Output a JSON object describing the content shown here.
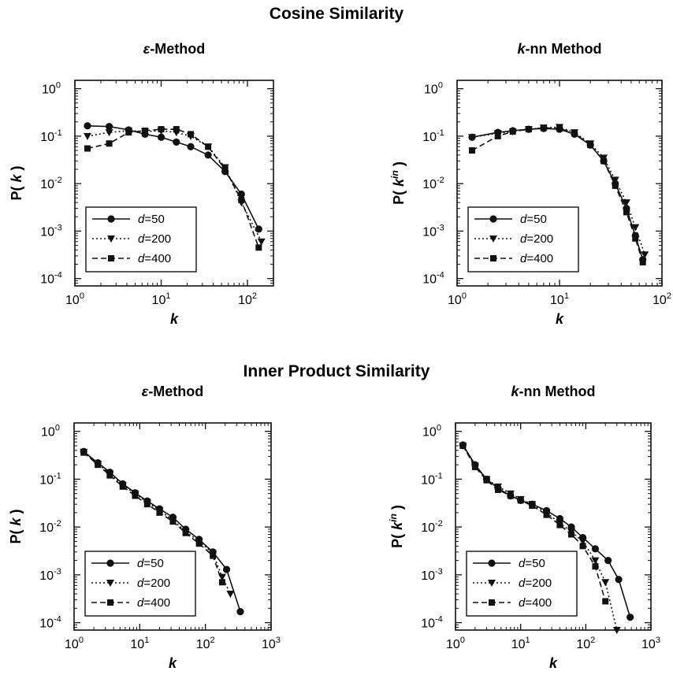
{
  "section_titles": [
    "Cosine Similarity",
    "Inner Product Similarity"
  ],
  "colors": {
    "ink": "#111111"
  },
  "chart_data": [
    {
      "type": "line",
      "section": "Cosine Similarity",
      "title_prefix": "ε",
      "title_suffix": "-Method",
      "xlabel": "k",
      "ylabel_prefix": "P( ",
      "ylabel_var": "k",
      "ylabel_sup": "",
      "ylabel_suffix": " )",
      "xscale": "log",
      "yscale": "log",
      "xlim": [
        1,
        200
      ],
      "ylim": [
        7e-05,
        1.5
      ],
      "xticks": [
        {
          "b": "10",
          "e": "0",
          "v": 1
        },
        {
          "b": "10",
          "e": "1",
          "v": 10
        },
        {
          "b": "10",
          "e": "2",
          "v": 100
        }
      ],
      "yticks": [
        {
          "b": "10",
          "e": "0",
          "v": 1
        },
        {
          "b": "10",
          "e": "-1",
          "v": 0.1
        },
        {
          "b": "10",
          "e": "-2",
          "v": 0.01
        },
        {
          "b": "10",
          "e": "-3",
          "v": 0.001
        },
        {
          "b": "10",
          "e": "-4",
          "v": 0.0001
        }
      ],
      "legend_position": "bottom-left",
      "series": [
        {
          "name_var": "d",
          "name_rest": "=50",
          "marker": "circle",
          "dash": "solid",
          "x": [
            1.4,
            2.5,
            4.2,
            6.5,
            10,
            15,
            22,
            35,
            55,
            85,
            135
          ],
          "y": [
            0.165,
            0.16,
            0.135,
            0.11,
            0.095,
            0.075,
            0.06,
            0.04,
            0.018,
            0.006,
            0.0011
          ]
        },
        {
          "name_var": "d",
          "name_rest": "=200",
          "marker": "triangle",
          "dash": "dotted",
          "x": [
            1.4,
            2.5,
            4.2,
            6.5,
            10,
            15,
            22,
            35,
            55,
            85,
            145
          ],
          "y": [
            0.1,
            0.12,
            0.13,
            0.125,
            0.13,
            0.12,
            0.1,
            0.06,
            0.022,
            0.004,
            0.0006
          ]
        },
        {
          "name_var": "d",
          "name_rest": "=400",
          "marker": "square",
          "dash": "dashed",
          "x": [
            1.4,
            2.5,
            4.2,
            6.5,
            10,
            15,
            22,
            35,
            55,
            85,
            135
          ],
          "y": [
            0.055,
            0.07,
            0.12,
            0.13,
            0.14,
            0.14,
            0.11,
            0.06,
            0.02,
            0.0045,
            0.00045
          ]
        }
      ]
    },
    {
      "type": "line",
      "section": "Cosine Similarity",
      "title_prefix": "k",
      "title_suffix": "-nn Method",
      "xlabel": "k",
      "ylabel_prefix": "P( ",
      "ylabel_var": "k",
      "ylabel_sup": "in",
      "ylabel_suffix": " )",
      "xscale": "log",
      "yscale": "log",
      "xlim": [
        1,
        100
      ],
      "ylim": [
        7e-05,
        1.5
      ],
      "xticks": [
        {
          "b": "10",
          "e": "0",
          "v": 1
        },
        {
          "b": "10",
          "e": "1",
          "v": 10
        },
        {
          "b": "10",
          "e": "2",
          "v": 100
        }
      ],
      "yticks": [
        {
          "b": "10",
          "e": "0",
          "v": 1
        },
        {
          "b": "10",
          "e": "-1",
          "v": 0.1
        },
        {
          "b": "10",
          "e": "-2",
          "v": 0.01
        },
        {
          "b": "10",
          "e": "-3",
          "v": 0.001
        },
        {
          "b": "10",
          "e": "-4",
          "v": 0.0001
        }
      ],
      "legend_position": "bottom-left",
      "series": [
        {
          "name_var": "d",
          "name_rest": "=50",
          "marker": "circle",
          "dash": "solid",
          "x": [
            1.4,
            2.5,
            3.5,
            5,
            7,
            10,
            14,
            20,
            27,
            35,
            45,
            55,
            65
          ],
          "y": [
            0.095,
            0.12,
            0.13,
            0.14,
            0.145,
            0.14,
            0.11,
            0.065,
            0.03,
            0.01,
            0.003,
            0.0008,
            0.00025
          ]
        },
        {
          "name_var": "d",
          "name_rest": "=200",
          "marker": "triangle",
          "dash": "dotted",
          "x": [
            1.4,
            2.5,
            3.5,
            5,
            7,
            10,
            14,
            20,
            27,
            35,
            45,
            55,
            68
          ],
          "y": [
            0.095,
            0.115,
            0.125,
            0.14,
            0.15,
            0.155,
            0.12,
            0.07,
            0.035,
            0.012,
            0.004,
            0.0012,
            0.00032
          ]
        },
        {
          "name_var": "d",
          "name_rest": "=400",
          "marker": "square",
          "dash": "dashed",
          "x": [
            1.4,
            2.5,
            3.5,
            5,
            7,
            10,
            14,
            20,
            27,
            35,
            45,
            55,
            65
          ],
          "y": [
            0.05,
            0.1,
            0.125,
            0.14,
            0.15,
            0.145,
            0.115,
            0.065,
            0.03,
            0.009,
            0.0025,
            0.0007,
            0.00022
          ]
        }
      ]
    },
    {
      "type": "line",
      "section": "Inner Product Similarity",
      "title_prefix": "ε",
      "title_suffix": "-Method",
      "xlabel": "k",
      "ylabel_prefix": "P( ",
      "ylabel_var": "k",
      "ylabel_sup": "",
      "ylabel_suffix": " )",
      "xscale": "log",
      "yscale": "log",
      "xlim": [
        1,
        1000
      ],
      "ylim": [
        7e-05,
        1.5
      ],
      "xticks": [
        {
          "b": "10",
          "e": "0",
          "v": 1
        },
        {
          "b": "10",
          "e": "1",
          "v": 10
        },
        {
          "b": "10",
          "e": "2",
          "v": 100
        },
        {
          "b": "10",
          "e": "3",
          "v": 1000
        }
      ],
      "yticks": [
        {
          "b": "10",
          "e": "0",
          "v": 1
        },
        {
          "b": "10",
          "e": "-1",
          "v": 0.1
        },
        {
          "b": "10",
          "e": "-2",
          "v": 0.01
        },
        {
          "b": "10",
          "e": "-3",
          "v": 0.001
        },
        {
          "b": "10",
          "e": "-4",
          "v": 0.0001
        }
      ],
      "legend_position": "bottom-left",
      "series": [
        {
          "name_var": "d",
          "name_rest": "=50",
          "marker": "circle",
          "dash": "solid",
          "x": [
            1.4,
            2.3,
            3.5,
            5.5,
            8.5,
            13,
            20,
            32,
            50,
            80,
            130,
            210,
            340
          ],
          "y": [
            0.38,
            0.22,
            0.14,
            0.08,
            0.052,
            0.035,
            0.024,
            0.016,
            0.009,
            0.0055,
            0.003,
            0.0013,
            0.00017
          ]
        },
        {
          "name_var": "d",
          "name_rest": "=200",
          "marker": "triangle",
          "dash": "dotted",
          "x": [
            1.4,
            2.3,
            3.5,
            5.5,
            8.5,
            13,
            20,
            32,
            50,
            80,
            130,
            180,
            240
          ],
          "y": [
            0.37,
            0.21,
            0.13,
            0.075,
            0.05,
            0.033,
            0.022,
            0.014,
            0.008,
            0.005,
            0.0028,
            0.0009,
            0.0004
          ]
        },
        {
          "name_var": "d",
          "name_rest": "=400",
          "marker": "square",
          "dash": "dashed",
          "x": [
            1.4,
            2.3,
            3.5,
            5.5,
            8.5,
            13,
            20,
            32,
            50,
            80,
            130,
            180
          ],
          "y": [
            0.36,
            0.2,
            0.12,
            0.07,
            0.045,
            0.03,
            0.02,
            0.013,
            0.0075,
            0.0045,
            0.0025,
            0.0007
          ]
        }
      ]
    },
    {
      "type": "line",
      "section": "Inner Product Similarity",
      "title_prefix": "k",
      "title_suffix": "-nn Method",
      "xlabel": "k",
      "ylabel_prefix": "P( ",
      "ylabel_var": "k",
      "ylabel_sup": "in",
      "ylabel_suffix": " )",
      "xscale": "log",
      "yscale": "log",
      "xlim": [
        1,
        1000
      ],
      "ylim": [
        7e-05,
        1.5
      ],
      "xticks": [
        {
          "b": "10",
          "e": "0",
          "v": 1
        },
        {
          "b": "10",
          "e": "1",
          "v": 10
        },
        {
          "b": "10",
          "e": "2",
          "v": 100
        },
        {
          "b": "10",
          "e": "3",
          "v": 1000
        }
      ],
      "yticks": [
        {
          "b": "10",
          "e": "0",
          "v": 1
        },
        {
          "b": "10",
          "e": "-1",
          "v": 0.1
        },
        {
          "b": "10",
          "e": "-2",
          "v": 0.01
        },
        {
          "b": "10",
          "e": "-3",
          "v": 0.001
        },
        {
          "b": "10",
          "e": "-4",
          "v": 0.0001
        }
      ],
      "legend_position": "bottom-left",
      "series": [
        {
          "name_var": "d",
          "name_rest": "=50",
          "marker": "circle",
          "dash": "solid",
          "x": [
            1.3,
            2,
            3,
            4.5,
            7,
            10,
            15,
            25,
            40,
            60,
            90,
            140,
            220,
            320,
            480
          ],
          "y": [
            0.52,
            0.2,
            0.1,
            0.065,
            0.045,
            0.036,
            0.03,
            0.022,
            0.015,
            0.01,
            0.006,
            0.0035,
            0.002,
            0.0008,
            0.00013
          ]
        },
        {
          "name_var": "d",
          "name_rest": "=200",
          "marker": "triangle",
          "dash": "dotted",
          "x": [
            1.3,
            2,
            3,
            4.5,
            7,
            10,
            15,
            25,
            40,
            60,
            90,
            140,
            200,
            300
          ],
          "y": [
            0.5,
            0.19,
            0.1,
            0.07,
            0.05,
            0.038,
            0.03,
            0.02,
            0.012,
            0.008,
            0.005,
            0.002,
            0.0007,
            7e-05
          ]
        },
        {
          "name_var": "d",
          "name_rest": "=400",
          "marker": "square",
          "dash": "dashed",
          "x": [
            1.3,
            2,
            3,
            4.5,
            7,
            10,
            15,
            25,
            40,
            60,
            90,
            140,
            200
          ],
          "y": [
            0.5,
            0.18,
            0.095,
            0.06,
            0.045,
            0.036,
            0.028,
            0.018,
            0.011,
            0.007,
            0.004,
            0.0015,
            0.00028
          ]
        }
      ]
    }
  ]
}
